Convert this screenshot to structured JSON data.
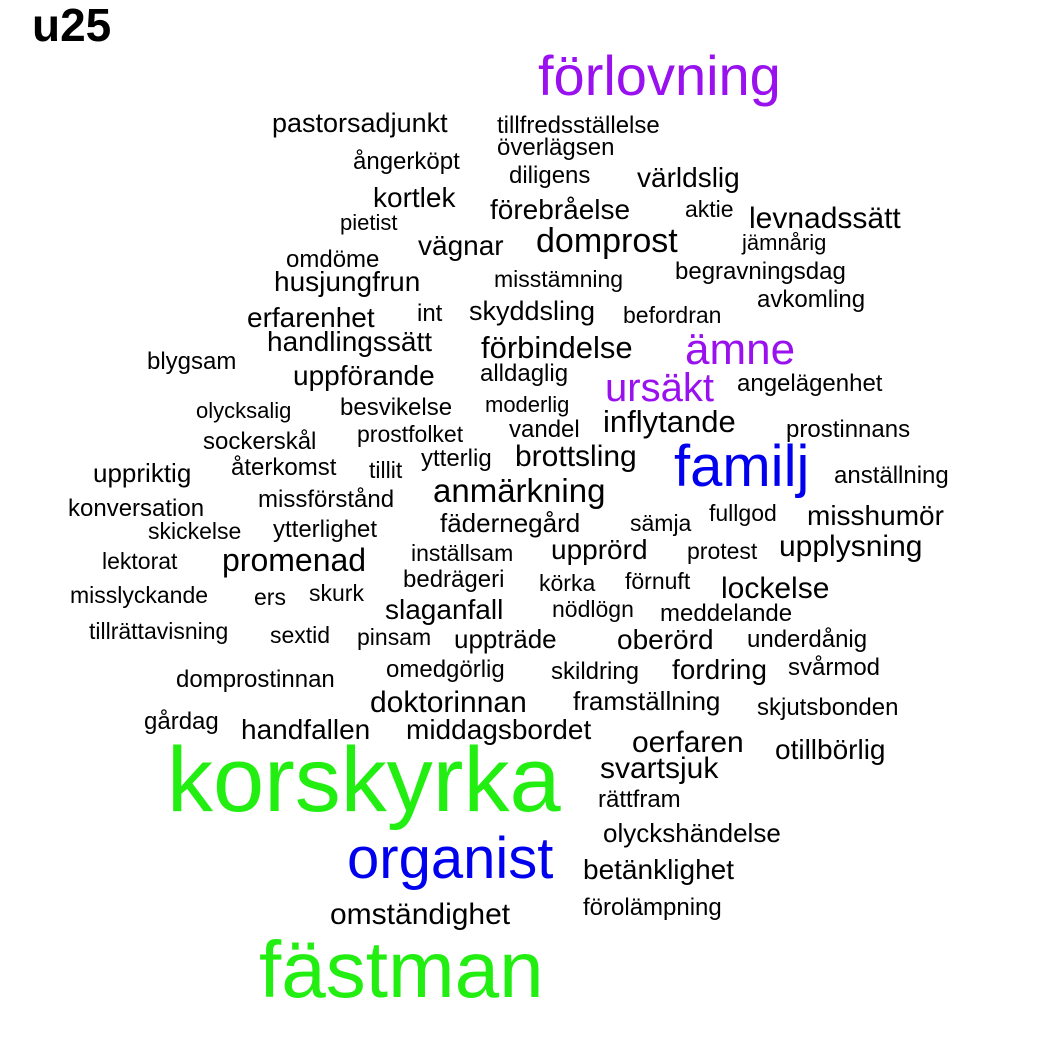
{
  "title": "u25",
  "colors": {
    "green": "#22ee11",
    "blue": "#0000ee",
    "purple": "#9911ee",
    "black": "#000000"
  },
  "words": [
    {
      "text": "förlovning",
      "color": "purple"
    },
    {
      "text": "pastorsadjunkt",
      "color": "black"
    },
    {
      "text": "tillfredsställelse",
      "color": "black"
    },
    {
      "text": "överlägsen",
      "color": "black"
    },
    {
      "text": "ångerköpt",
      "color": "black"
    },
    {
      "text": "diligens",
      "color": "black"
    },
    {
      "text": "världslig",
      "color": "black"
    },
    {
      "text": "kortlek",
      "color": "black"
    },
    {
      "text": "förebråelse",
      "color": "black"
    },
    {
      "text": "aktie",
      "color": "black"
    },
    {
      "text": "levnadssätt",
      "color": "black"
    },
    {
      "text": "pietist",
      "color": "black"
    },
    {
      "text": "domprost",
      "color": "black"
    },
    {
      "text": "vägnar",
      "color": "black"
    },
    {
      "text": "jämnårig",
      "color": "black"
    },
    {
      "text": "omdöme",
      "color": "black"
    },
    {
      "text": "begravningsdag",
      "color": "black"
    },
    {
      "text": "husjungfrun",
      "color": "black"
    },
    {
      "text": "misstämning",
      "color": "black"
    },
    {
      "text": "avkomling",
      "color": "black"
    },
    {
      "text": "erfarenhet",
      "color": "black"
    },
    {
      "text": "int",
      "color": "black"
    },
    {
      "text": "skyddsling",
      "color": "black"
    },
    {
      "text": "befordran",
      "color": "black"
    },
    {
      "text": "handlingssätt",
      "color": "black"
    },
    {
      "text": "förbindelse",
      "color": "black"
    },
    {
      "text": "ämne",
      "color": "purple"
    },
    {
      "text": "blygsam",
      "color": "black"
    },
    {
      "text": "uppförande",
      "color": "black"
    },
    {
      "text": "alldaglig",
      "color": "black"
    },
    {
      "text": "ursäkt",
      "color": "purple"
    },
    {
      "text": "angelägenhet",
      "color": "black"
    },
    {
      "text": "olycksalig",
      "color": "black"
    },
    {
      "text": "besvikelse",
      "color": "black"
    },
    {
      "text": "moderlig",
      "color": "black"
    },
    {
      "text": "inflytande",
      "color": "black"
    },
    {
      "text": "prostinnans",
      "color": "black"
    },
    {
      "text": "sockerskål",
      "color": "black"
    },
    {
      "text": "prostfolket",
      "color": "black"
    },
    {
      "text": "vandel",
      "color": "black"
    },
    {
      "text": "familj",
      "color": "blue"
    },
    {
      "text": "uppriktig",
      "color": "black"
    },
    {
      "text": "återkomst",
      "color": "black"
    },
    {
      "text": "tillit",
      "color": "black"
    },
    {
      "text": "ytterlig",
      "color": "black"
    },
    {
      "text": "brottsling",
      "color": "black"
    },
    {
      "text": "anställning",
      "color": "black"
    },
    {
      "text": "anmärkning",
      "color": "black"
    },
    {
      "text": "konversation",
      "color": "black"
    },
    {
      "text": "missförstånd",
      "color": "black"
    },
    {
      "text": "fullgod",
      "color": "black"
    },
    {
      "text": "misshumör",
      "color": "black"
    },
    {
      "text": "skickelse",
      "color": "black"
    },
    {
      "text": "ytterlighet",
      "color": "black"
    },
    {
      "text": "fädernegård",
      "color": "black"
    },
    {
      "text": "sämja",
      "color": "black"
    },
    {
      "text": "upplysning",
      "color": "black"
    },
    {
      "text": "promenad",
      "color": "black"
    },
    {
      "text": "lektorat",
      "color": "black"
    },
    {
      "text": "inställsam",
      "color": "black"
    },
    {
      "text": "upprörd",
      "color": "black"
    },
    {
      "text": "protest",
      "color": "black"
    },
    {
      "text": "bedrägeri",
      "color": "black"
    },
    {
      "text": "körka",
      "color": "black"
    },
    {
      "text": "förnuft",
      "color": "black"
    },
    {
      "text": "lockelse",
      "color": "black"
    },
    {
      "text": "misslyckande",
      "color": "black"
    },
    {
      "text": "ers",
      "color": "black"
    },
    {
      "text": "skurk",
      "color": "black"
    },
    {
      "text": "slaganfall",
      "color": "black"
    },
    {
      "text": "nödlögn",
      "color": "black"
    },
    {
      "text": "meddelande",
      "color": "black"
    },
    {
      "text": "tillrättavisning",
      "color": "black"
    },
    {
      "text": "sextid",
      "color": "black"
    },
    {
      "text": "pinsam",
      "color": "black"
    },
    {
      "text": "uppträde",
      "color": "black"
    },
    {
      "text": "oberörd",
      "color": "black"
    },
    {
      "text": "underdånig",
      "color": "black"
    },
    {
      "text": "domprostinnan",
      "color": "black"
    },
    {
      "text": "omedgörlig",
      "color": "black"
    },
    {
      "text": "skildring",
      "color": "black"
    },
    {
      "text": "fordring",
      "color": "black"
    },
    {
      "text": "svårmod",
      "color": "black"
    },
    {
      "text": "doktorinnan",
      "color": "black"
    },
    {
      "text": "framställning",
      "color": "black"
    },
    {
      "text": "skjutsbonden",
      "color": "black"
    },
    {
      "text": "gårdag",
      "color": "black"
    },
    {
      "text": "handfallen",
      "color": "black"
    },
    {
      "text": "middagsbordet",
      "color": "black"
    },
    {
      "text": "oerfaren",
      "color": "black"
    },
    {
      "text": "otillbörlig",
      "color": "black"
    },
    {
      "text": "svartsjuk",
      "color": "black"
    },
    {
      "text": "korskyrka",
      "color": "green"
    },
    {
      "text": "rättfram",
      "color": "black"
    },
    {
      "text": "olyckshändelse",
      "color": "black"
    },
    {
      "text": "organist",
      "color": "blue"
    },
    {
      "text": "betänklighet",
      "color": "black"
    },
    {
      "text": "omständighet",
      "color": "black"
    },
    {
      "text": "förolämpning",
      "color": "black"
    },
    {
      "text": "fästman",
      "color": "green"
    }
  ]
}
